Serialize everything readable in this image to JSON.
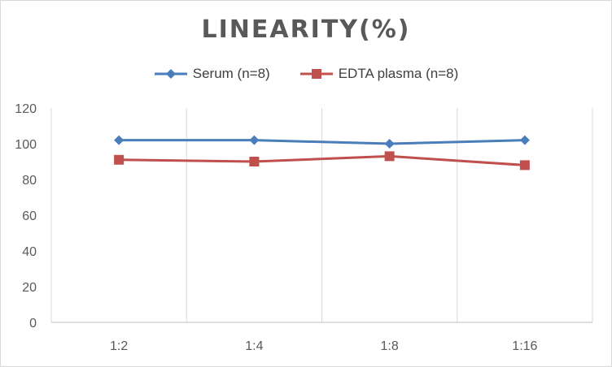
{
  "chart_data": {
    "type": "line",
    "title": "LINEARITY(%)",
    "xlabel": "",
    "ylabel": "",
    "categories": [
      "1:2",
      "1:4",
      "1:8",
      "1:16"
    ],
    "ylim": [
      0,
      120
    ],
    "yticks": [
      0,
      20,
      40,
      60,
      80,
      100,
      120
    ],
    "grid": "vertical category separators",
    "legend_position": "top",
    "series": [
      {
        "name": "Serum (n=8)",
        "values": [
          102,
          102,
          100,
          102
        ],
        "color": "#4a7ebb",
        "marker": "diamond"
      },
      {
        "name": "EDTA plasma (n=8)",
        "values": [
          91,
          90,
          93,
          88
        ],
        "color": "#c0504d",
        "marker": "square"
      }
    ]
  }
}
